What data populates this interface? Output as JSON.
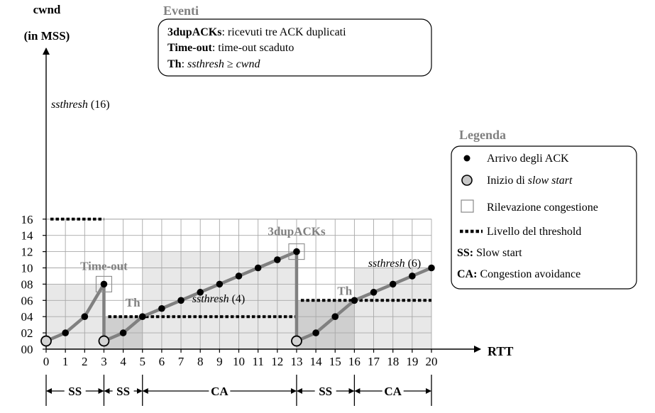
{
  "chart_data": {
    "type": "line",
    "y_axis_label": [
      "cwnd",
      "(in MSS)"
    ],
    "x_axis_label": "RTT",
    "xlim": [
      0,
      20
    ],
    "ylim": [
      0,
      16
    ],
    "x_ticks": [
      "0",
      "1",
      "2",
      "3",
      "3",
      "4",
      "5",
      "6",
      "7",
      "8",
      "9",
      "10",
      "11",
      "12",
      "13",
      "13",
      "14",
      "15",
      "16",
      "17",
      "18",
      "19",
      "20"
    ],
    "y_ticks": [
      "00",
      "02",
      "04",
      "06",
      "08",
      "10",
      "12",
      "14",
      "16"
    ],
    "grid": true,
    "series_colors": {
      "line": "#808080",
      "points": "#000000",
      "threshold": "#000000"
    },
    "segments": [
      {
        "points": [
          [
            0,
            1
          ],
          [
            1,
            2
          ],
          [
            2,
            4
          ],
          [
            3,
            8
          ]
        ]
      },
      {
        "points": [
          [
            3,
            8
          ],
          [
            3,
            1
          ]
        ]
      },
      {
        "points": [
          [
            3,
            1
          ],
          [
            4,
            2
          ],
          [
            5,
            4
          ],
          [
            6,
            5
          ],
          [
            7,
            6
          ],
          [
            8,
            7
          ],
          [
            9,
            8
          ],
          [
            10,
            9
          ],
          [
            11,
            10
          ],
          [
            12,
            11
          ],
          [
            13,
            12
          ]
        ]
      },
      {
        "points": [
          [
            13,
            12
          ],
          [
            13,
            1
          ]
        ]
      },
      {
        "points": [
          [
            13,
            1
          ],
          [
            14,
            2
          ],
          [
            15,
            4
          ],
          [
            16,
            6
          ],
          [
            17,
            7
          ],
          [
            18,
            8
          ],
          [
            19,
            9
          ],
          [
            20,
            10
          ]
        ]
      }
    ],
    "ack_points": [
      [
        1,
        2
      ],
      [
        2,
        4
      ],
      [
        3,
        8
      ],
      [
        4,
        2
      ],
      [
        5,
        4
      ],
      [
        6,
        5
      ],
      [
        7,
        6
      ],
      [
        8,
        7
      ],
      [
        9,
        8
      ],
      [
        10,
        9
      ],
      [
        11,
        10
      ],
      [
        12,
        11
      ],
      [
        13,
        12
      ],
      [
        14,
        2
      ],
      [
        15,
        4
      ],
      [
        16,
        6
      ],
      [
        17,
        7
      ],
      [
        18,
        8
      ],
      [
        19,
        9
      ],
      [
        20,
        10
      ]
    ],
    "slow_start_points": [
      [
        0,
        1
      ],
      [
        3,
        1
      ],
      [
        13,
        1
      ]
    ],
    "congestion_points": [
      [
        3,
        8
      ],
      [
        13,
        12
      ]
    ],
    "thresholds": [
      {
        "x": [
          0,
          3
        ],
        "y": 16,
        "label_italic": "ssthresh",
        "label_rest": " (16)"
      },
      {
        "x": [
          3,
          13
        ],
        "y": 4,
        "label_italic": "ssthresh",
        "label_rest": " (4)"
      },
      {
        "x": [
          13,
          20
        ],
        "y": 6,
        "label_italic": "ssthresh",
        "label_rest": " (6)"
      }
    ],
    "phase_regions": [
      {
        "x": [
          0,
          3
        ],
        "ytop": 8,
        "shade": "light"
      },
      {
        "x": [
          3,
          5
        ],
        "ytop": 4,
        "shade": "dark"
      },
      {
        "x": [
          5,
          13
        ],
        "ytop": 12,
        "shade": "light"
      },
      {
        "x": [
          13,
          16
        ],
        "ytop": 6,
        "shade": "dark"
      },
      {
        "x": [
          16,
          20
        ],
        "ytop": 10,
        "shade": "light"
      }
    ],
    "annotations": {
      "timeout": "Time-out",
      "th": "Th",
      "three_dup": "3dupACKs"
    },
    "phases": [
      {
        "label": "SS",
        "x": [
          0,
          3
        ]
      },
      {
        "label": "SS",
        "x": [
          3,
          5
        ]
      },
      {
        "label": "CA",
        "x": [
          5,
          13
        ]
      },
      {
        "label": "SS",
        "x": [
          13,
          16
        ]
      },
      {
        "label": "CA",
        "x": [
          16,
          20
        ]
      }
    ]
  },
  "events_box": {
    "title": "Eventi",
    "rows": [
      {
        "term": "3dupACKs",
        "text": ": ricevuti tre ACK duplicati"
      },
      {
        "term": "Time-out",
        "text": ": time-out scaduto"
      },
      {
        "term": "Th",
        "text": ": ",
        "italic1": "ssthresh",
        "sym": " ≥ ",
        "italic2": "cwnd"
      }
    ]
  },
  "legend": {
    "title": "Legenda",
    "items": {
      "ack": "Arrivo degli ACK",
      "slow_start_prefix": "Inizio di ",
      "slow_start_italic": "slow start",
      "congestion": "Rilevazione congestione",
      "threshold": "Livello del threshold",
      "ss_key": "SS:",
      "ss_text": " Slow start",
      "ca_key": "CA:",
      "ca_text": " Congestion avoidance"
    }
  }
}
